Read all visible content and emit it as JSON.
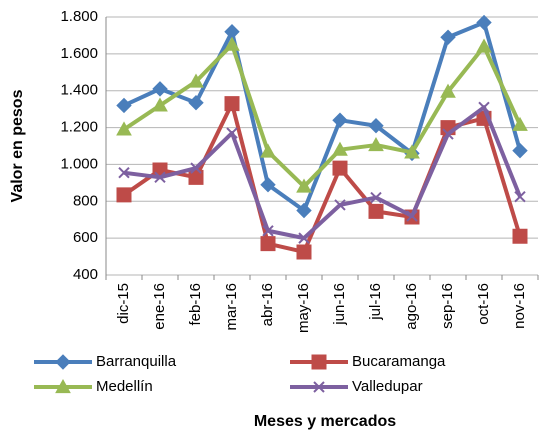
{
  "chart_data": {
    "type": "line",
    "y_label": "Valor en pesos",
    "x_label": "Meses  y mercados",
    "categories": [
      "dic-15",
      "ene-16",
      "feb-16",
      "mar-16",
      "abr-16",
      "may-16",
      "jun-16",
      "jul-16",
      "ago-16",
      "sep-16",
      "oct-16",
      "nov-16"
    ],
    "series": [
      {
        "name": "Barranquilla",
        "color": "#4a7ebb",
        "marker": "diamond",
        "values": [
          1320,
          1410,
          1335,
          1720,
          890,
          750,
          1240,
          1210,
          1060,
          1690,
          1770,
          1075
        ]
      },
      {
        "name": "Bucaramanga",
        "color": "#be4b48",
        "marker": "square",
        "values": [
          835,
          970,
          930,
          1330,
          570,
          525,
          980,
          745,
          715,
          1200,
          1250,
          610
        ]
      },
      {
        "name": "Medellín",
        "color": "#98b954",
        "marker": "triangle",
        "values": [
          1190,
          1320,
          1450,
          1650,
          1070,
          880,
          1080,
          1105,
          1065,
          1395,
          1640,
          1215
        ]
      },
      {
        "name": "Valledupar",
        "color": "#7d60a0",
        "marker": "x",
        "values": [
          955,
          930,
          980,
          1170,
          640,
          600,
          780,
          820,
          720,
          1165,
          1310,
          825
        ]
      }
    ],
    "ylim": [
      400,
      1800
    ],
    "yticks": [
      400,
      600,
      800,
      {
        "value": 1000,
        "label": "1.000"
      },
      {
        "value": 1200,
        "label": "1.200"
      },
      {
        "value": 1400,
        "label": "1.400"
      },
      {
        "value": 1600,
        "label": "1.600"
      },
      {
        "value": 1800,
        "label": "1.800"
      }
    ],
    "grid": true
  }
}
